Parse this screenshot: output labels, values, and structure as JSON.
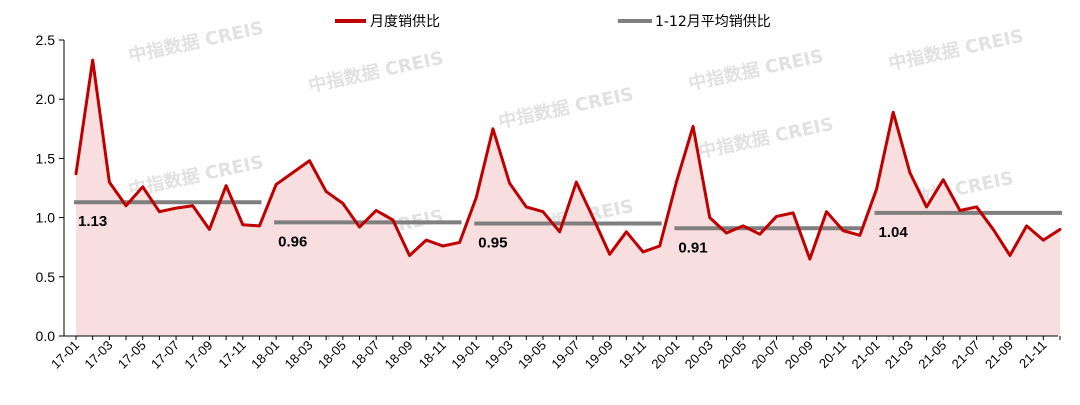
{
  "chart_data": {
    "type": "line",
    "categories": [
      "17-01",
      "17-02",
      "17-03",
      "17-04",
      "17-05",
      "17-06",
      "17-07",
      "17-08",
      "17-09",
      "17-10",
      "17-11",
      "17-12",
      "18-01",
      "18-02",
      "18-03",
      "18-04",
      "18-05",
      "18-06",
      "18-07",
      "18-08",
      "18-09",
      "18-10",
      "18-11",
      "18-12",
      "19-01",
      "19-02",
      "19-03",
      "19-04",
      "19-05",
      "19-06",
      "19-07",
      "19-08",
      "19-09",
      "19-10",
      "19-11",
      "19-12",
      "20-01",
      "20-02",
      "20-03",
      "20-04",
      "20-05",
      "20-06",
      "20-07",
      "20-08",
      "20-09",
      "20-10",
      "20-11",
      "20-12",
      "21-01",
      "21-02",
      "21-03",
      "21-04",
      "21-05",
      "21-06",
      "21-07",
      "21-08",
      "21-09",
      "21-10",
      "21-11",
      "21-12"
    ],
    "x_tick_labels": [
      "17-01",
      "17-03",
      "17-05",
      "17-07",
      "17-09",
      "17-11",
      "18-01",
      "18-03",
      "18-05",
      "18-07",
      "18-09",
      "18-11",
      "19-01",
      "19-03",
      "19-05",
      "19-07",
      "19-09",
      "19-11",
      "20-01",
      "20-03",
      "20-05",
      "20-07",
      "20-09",
      "20-11",
      "21-01",
      "21-03",
      "21-05",
      "21-07",
      "21-09",
      "21-11"
    ],
    "y_ticks": [
      "0.0",
      "0.5",
      "1.0",
      "1.5",
      "2.0",
      "2.5"
    ],
    "ylim": [
      0,
      2.5
    ],
    "series": [
      {
        "name": "月度销供比",
        "color": "#c00000",
        "fill": "#f8dede",
        "values": [
          1.37,
          2.33,
          1.3,
          1.1,
          1.26,
          1.05,
          1.08,
          1.1,
          0.9,
          1.27,
          0.94,
          0.93,
          1.28,
          1.38,
          1.48,
          1.22,
          1.12,
          0.92,
          1.06,
          0.98,
          0.68,
          0.81,
          0.76,
          0.79,
          1.17,
          1.75,
          1.29,
          1.09,
          1.05,
          0.88,
          1.3,
          1.0,
          0.69,
          0.88,
          0.71,
          0.76,
          1.3,
          1.77,
          1.0,
          0.87,
          0.93,
          0.86,
          1.01,
          1.04,
          0.65,
          1.05,
          0.89,
          0.85,
          1.24,
          1.89,
          1.38,
          1.09,
          1.32,
          1.06,
          1.09,
          0.9,
          0.68,
          0.93,
          0.81,
          0.9
        ]
      },
      {
        "name": "1-12月平均销供比",
        "color": "#7f7f7f",
        "segments": [
          {
            "value": 1.13,
            "label": "1.13",
            "start": 0,
            "end": 11
          },
          {
            "value": 0.96,
            "label": "0.96",
            "start": 12,
            "end": 23
          },
          {
            "value": 0.95,
            "label": "0.95",
            "start": 24,
            "end": 35
          },
          {
            "value": 0.91,
            "label": "0.91",
            "start": 36,
            "end": 47
          },
          {
            "value": 1.04,
            "label": "1.04",
            "start": 48,
            "end": 59
          }
        ]
      }
    ],
    "legend": {
      "position": "top"
    },
    "grid": false,
    "watermark": "中指数据 CREIS"
  }
}
